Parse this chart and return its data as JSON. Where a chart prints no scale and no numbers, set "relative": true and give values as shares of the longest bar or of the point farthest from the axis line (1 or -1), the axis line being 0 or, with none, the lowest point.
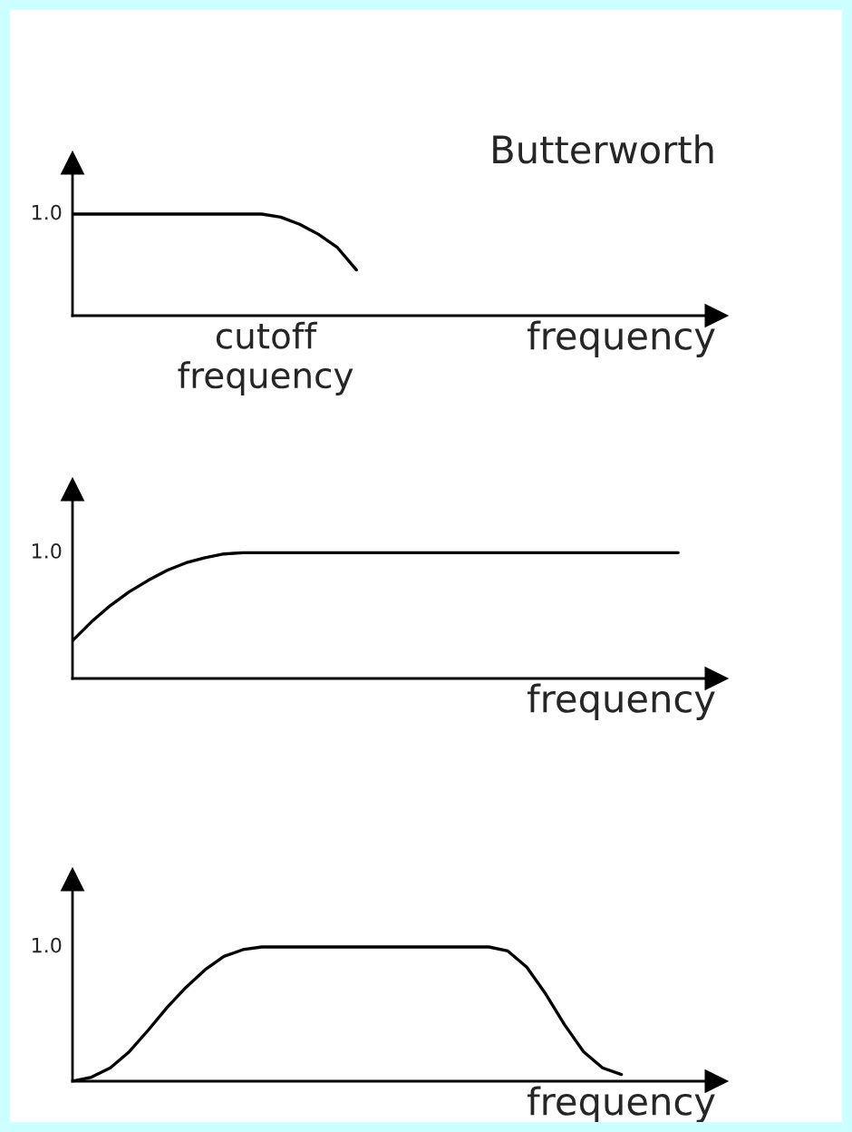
{
  "chart_data": [
    {
      "type": "line",
      "title": "Butterworth",
      "xlabel": "frequency",
      "relative": true,
      "categories": [
        null,
        null,
        null,
        null,
        null,
        null,
        null,
        null,
        null,
        null,
        null,
        null,
        null,
        null,
        null,
        null,
        null,
        null,
        null,
        null,
        null,
        null,
        null,
        null,
        null,
        null,
        null,
        null,
        null,
        null,
        null,
        null,
        null,
        null
      ],
      "annotations": [
        "1.0",
        "cutoff\nfrequency"
      ],
      "marker": "none",
      "series": [
        {
          "color": "#000000",
          "values": [
            1,
            1,
            1,
            1,
            1,
            1,
            1,
            1,
            1,
            1,
            1,
            0.97,
            0.9,
            0.8,
            0.67,
            0.45,
            null,
            null,
            null,
            null,
            null,
            null,
            null,
            null,
            null,
            null,
            null,
            null,
            null,
            null,
            null,
            null,
            null,
            null
          ]
        }
      ]
    },
    {
      "type": "line",
      "xlabel": "frequency",
      "relative": true,
      "categories": [
        null,
        null,
        null,
        null,
        null,
        null,
        null,
        null,
        null,
        null,
        null,
        null,
        null,
        null,
        null,
        null,
        null,
        null,
        null,
        null,
        null,
        null,
        null,
        null,
        null,
        null,
        null,
        null,
        null,
        null,
        null,
        null,
        null,
        null
      ],
      "annotations": [
        "1.0"
      ],
      "marker": "none",
      "series": [
        {
          "color": "#000000",
          "values": [
            0.3,
            0.45,
            0.58,
            0.69,
            0.78,
            0.86,
            0.92,
            0.96,
            0.99,
            1,
            1,
            1,
            1,
            1,
            1,
            1,
            1,
            1,
            1,
            1,
            1,
            1,
            1,
            1,
            1,
            1,
            1,
            1,
            1,
            1,
            1,
            1,
            1,
            null
          ]
        }
      ]
    },
    {
      "type": "line",
      "xlabel": "frequency",
      "relative": true,
      "categories": [
        null,
        null,
        null,
        null,
        null,
        null,
        null,
        null,
        null,
        null,
        null,
        null,
        null,
        null,
        null,
        null,
        null,
        null,
        null,
        null,
        null,
        null,
        null,
        null,
        null,
        null,
        null,
        null,
        null,
        null,
        null,
        null,
        null,
        null
      ],
      "annotations": [
        "1.0"
      ],
      "marker": "none",
      "series": [
        {
          "color": "#000000",
          "values": [
            0,
            0.03,
            0.1,
            0.22,
            0.38,
            0.55,
            0.7,
            0.83,
            0.93,
            0.98,
            1,
            1,
            1,
            1,
            1,
            1,
            1,
            1,
            1,
            1,
            1,
            1,
            1,
            0.97,
            0.85,
            0.65,
            0.42,
            0.22,
            0.1,
            0.05,
            null,
            null,
            null,
            null
          ]
        }
      ]
    }
  ]
}
